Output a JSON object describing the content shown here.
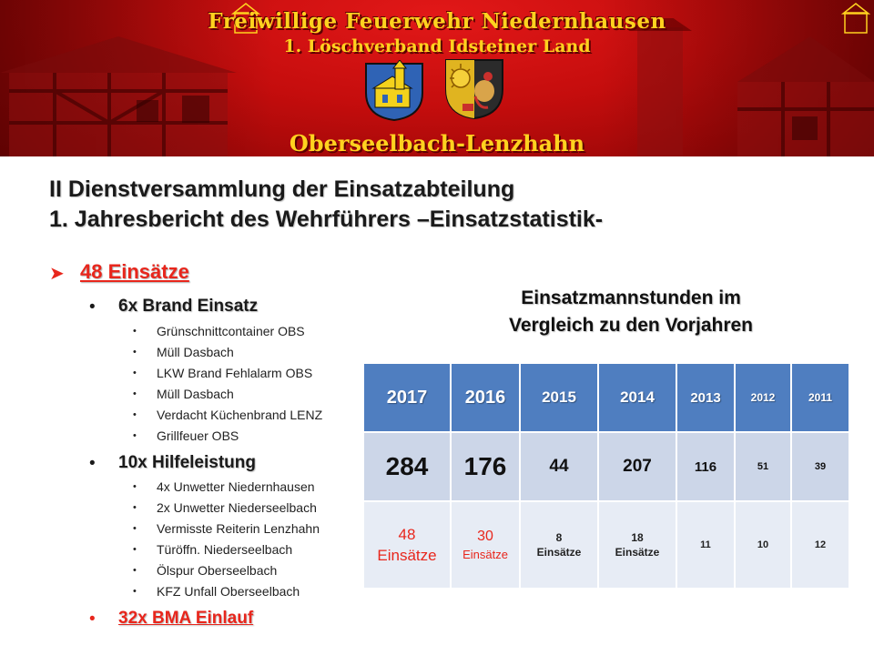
{
  "banner": {
    "title": "Freiwillige Feuerwehr Niedernhausen",
    "subtitle": "1. Löschverband Idsteiner Land",
    "place": "Oberseelbach-Lenzhahn"
  },
  "heading": {
    "line1": "II Dienstversammlung der Einsatzabteilung",
    "line2": "1. Jahresbericht des Wehrführers –Einsatzstatistik-"
  },
  "summary": {
    "label": "48 Einsätze",
    "groups": [
      {
        "label": "6x Brand Einsatz",
        "items": [
          "Grünschnittcontainer OBS",
          "Müll Dasbach",
          "LKW Brand Fehlalarm OBS",
          "Müll Dasbach",
          "Verdacht Küchenbrand LENZ",
          "Grillfeuer OBS"
        ]
      },
      {
        "label": "10x Hilfeleistung",
        "items": [
          "4x Unwetter Niedernhausen",
          "2x Unwetter Niederseelbach",
          "Vermisste Reiterin Lenzhahn",
          "Türöffn. Niederseelbach",
          "Ölspur Oberseelbach",
          "KFZ Unfall Oberseelbach"
        ]
      },
      {
        "label": "32x BMA Einlauf",
        "items": []
      }
    ]
  },
  "stats": {
    "title_line1": "Einsatzmannstunden im",
    "title_line2": "Vergleich zu den Vorjahren",
    "years": [
      "2017",
      "2016",
      "2015",
      "2014",
      "2013",
      "2012",
      "2011"
    ],
    "hours": [
      "284",
      "176",
      "44",
      "207",
      "116",
      "51",
      "39"
    ],
    "counts": [
      {
        "n": "48",
        "unit": "Einsätze"
      },
      {
        "n": "30",
        "unit": "Einsätze"
      },
      {
        "n": "8",
        "unit": "Einsätze"
      },
      {
        "n": "18",
        "unit": "Einsätze"
      },
      {
        "n": "11",
        "unit": ""
      },
      {
        "n": "10",
        "unit": ""
      },
      {
        "n": "12",
        "unit": ""
      }
    ]
  },
  "colors": {
    "accent_red": "#e8261c",
    "banner_red": "#c50d0d",
    "banner_text": "#ffd21f",
    "table_header": "#4f7ec0",
    "table_row1": "#ccd6e8",
    "table_row2": "#e7ecf5"
  }
}
